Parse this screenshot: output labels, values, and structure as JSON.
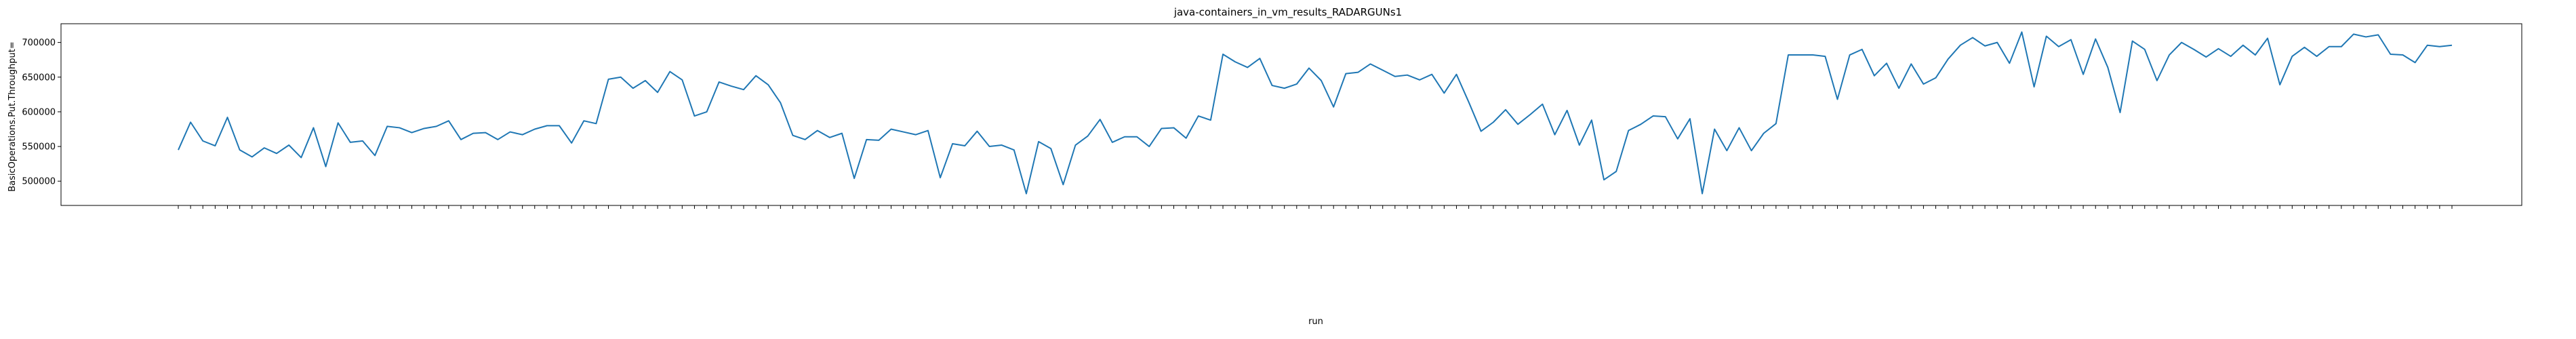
{
  "chart_data": {
    "type": "line",
    "title": "java-containers_in_vm_results_RADARGUNs1",
    "xlabel": "run",
    "ylabel": "BasicOperations.Put.Throughput=",
    "ylim": [
      465000,
      727000
    ],
    "yticks": [
      500000,
      550000,
      600000,
      650000,
      700000
    ],
    "ytick_labels": [
      "500000",
      "550000",
      "600000",
      "650000",
      "700000"
    ],
    "grid": false,
    "legend": "none",
    "color": "#1f77b4",
    "values": [
      545000,
      585000,
      558000,
      551000,
      592000,
      545000,
      535000,
      548000,
      540000,
      552000,
      534000,
      577000,
      521000,
      584000,
      556000,
      558000,
      537000,
      579000,
      577000,
      570000,
      576000,
      579000,
      587000,
      560000,
      569000,
      570000,
      560000,
      571000,
      567000,
      575000,
      580000,
      580000,
      555000,
      587000,
      583000,
      647000,
      650000,
      634000,
      645000,
      628000,
      658000,
      646000,
      594000,
      600000,
      643000,
      637000,
      632000,
      652000,
      639000,
      613000,
      566000,
      560000,
      573000,
      563000,
      569000,
      504000,
      560000,
      559000,
      575000,
      571000,
      567000,
      573000,
      505000,
      554000,
      551000,
      572000,
      550000,
      552000,
      545000,
      482000,
      557000,
      547000,
      495000,
      552000,
      565000,
      589000,
      556000,
      564000,
      564000,
      550000,
      576000,
      577000,
      562000,
      594000,
      588000,
      683000,
      672000,
      664000,
      677000,
      638000,
      634000,
      640000,
      663000,
      645000,
      607000,
      655000,
      657000,
      669000,
      660000,
      651000,
      653000,
      646000,
      654000,
      627000,
      654000,
      614000,
      572000,
      585000,
      603000,
      582000,
      596000,
      611000,
      567000,
      602000,
      552000,
      588000,
      502000,
      514000,
      573000,
      582000,
      594000,
      593000,
      561000,
      590000,
      482000,
      575000,
      544000,
      577000,
      544000,
      569000,
      583000,
      682000,
      682000,
      682000,
      680000,
      618000,
      682000,
      690000,
      652000,
      670000,
      634000,
      669000,
      640000,
      649000,
      676000,
      696000,
      707000,
      695000,
      700000,
      670000,
      715000,
      636000,
      709000,
      694000,
      704000,
      654000,
      705000,
      664000,
      599000,
      702000,
      690000,
      645000,
      682000,
      700000,
      690000,
      679000,
      691000,
      680000,
      696000,
      682000,
      706000,
      639000,
      680000,
      693000,
      680000,
      694000,
      694000,
      712000,
      708000,
      711000,
      683000,
      682000,
      671000,
      696000,
      694000,
      696000
    ]
  }
}
